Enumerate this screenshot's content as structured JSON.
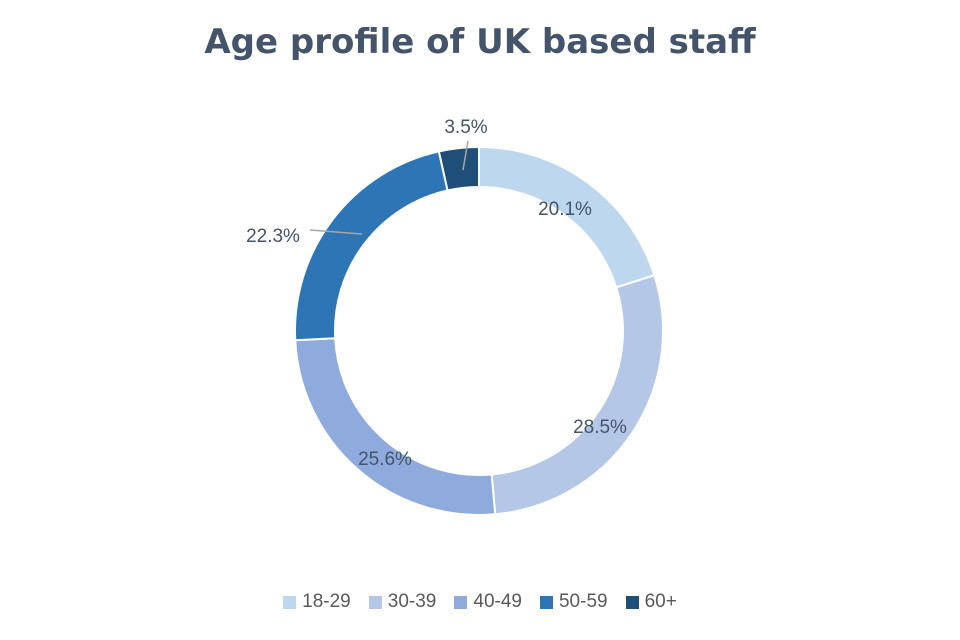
{
  "chart_data": {
    "type": "pie",
    "title": "Age profile of UK based staff",
    "style": "donut",
    "categories": [
      "18-29",
      "30-39",
      "40-49",
      "50-59",
      "60+"
    ],
    "values": [
      20.1,
      28.5,
      25.6,
      22.3,
      3.5
    ],
    "data_labels": [
      "20.1%",
      "28.5%",
      "25.6%",
      "22.3%",
      "3.5%"
    ],
    "colors": [
      "#bdd7ee",
      "#b4c7e7",
      "#8faadc",
      "#2e75b6",
      "#1f4e79"
    ],
    "legend_position": "bottom"
  }
}
